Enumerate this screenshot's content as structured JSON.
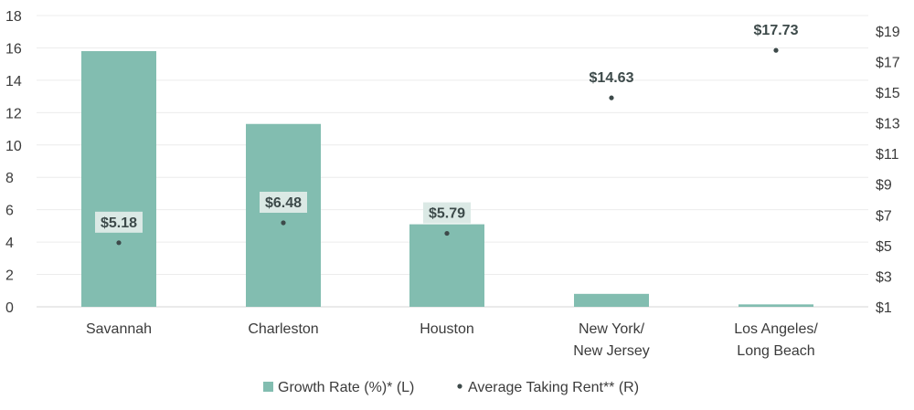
{
  "chart_data": {
    "type": "bar",
    "categories": [
      [
        "Savannah"
      ],
      [
        "Charleston"
      ],
      [
        "Houston"
      ],
      [
        "New York/",
        "New Jersey"
      ],
      [
        "Los Angeles/",
        "Long Beach"
      ]
    ],
    "series": [
      {
        "name": "Growth Rate (%)* (L)",
        "type": "bar",
        "axis": "left",
        "color": "#82bdb0",
        "values": [
          15.8,
          11.3,
          5.1,
          0.8,
          0.15
        ]
      },
      {
        "name": "Average Taking Rent** (R)",
        "type": "scatter",
        "axis": "right",
        "color": "#3d4a4a",
        "values": [
          5.18,
          6.48,
          5.79,
          14.63,
          17.73
        ],
        "labels": [
          "$5.18",
          "$6.48",
          "$5.79",
          "$14.63",
          "$17.73"
        ]
      }
    ],
    "y_left": {
      "min": 0,
      "max": 18,
      "ticks": [
        "0",
        "2",
        "4",
        "6",
        "8",
        "10",
        "12",
        "14",
        "16",
        "18"
      ]
    },
    "y_right": {
      "min": 1,
      "max": 20,
      "ticks": [
        "$1",
        "$3",
        "$5",
        "$7",
        "$9",
        "$11",
        "$13",
        "$15",
        "$17",
        "$19"
      ]
    },
    "grid": true,
    "legend": {
      "position": "bottom"
    },
    "label_background": "#dbe9e5"
  }
}
